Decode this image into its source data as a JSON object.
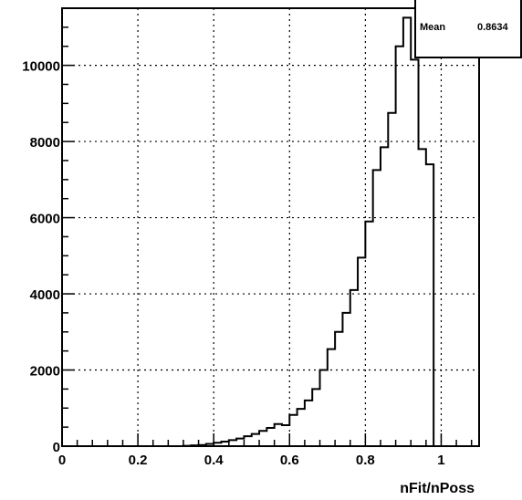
{
  "chart_data": {
    "type": "histogram",
    "title": "",
    "xlabel": "nFit/nPoss",
    "ylabel": "",
    "xlim": [
      0,
      1.1
    ],
    "ylim": [
      0,
      11500
    ],
    "grid": true,
    "x_ticks": [
      0,
      0.2,
      0.4,
      0.6,
      0.8,
      1
    ],
    "x_tick_labels": [
      "0",
      "0.2",
      "0.4",
      "0.6",
      "0.8",
      "1"
    ],
    "y_ticks": [
      0,
      2000,
      4000,
      6000,
      8000,
      10000
    ],
    "y_tick_labels": [
      "0",
      "2000",
      "4000",
      "6000",
      "8000",
      "10000"
    ],
    "bin_edges": [
      0.32,
      0.34,
      0.36,
      0.38,
      0.4,
      0.42,
      0.44,
      0.46,
      0.48,
      0.5,
      0.52,
      0.54,
      0.56,
      0.58,
      0.6,
      0.62,
      0.64,
      0.66,
      0.68,
      0.7,
      0.72,
      0.74,
      0.76,
      0.78,
      0.8,
      0.82,
      0.84,
      0.86,
      0.88,
      0.9,
      0.92,
      0.94,
      0.96,
      0.98,
      1.0,
      1.02
    ],
    "bin_values": [
      10,
      20,
      30,
      60,
      90,
      120,
      160,
      200,
      260,
      320,
      400,
      480,
      580,
      550,
      820,
      980,
      1200,
      1500,
      2000,
      2550,
      3000,
      3500,
      4100,
      4950,
      5900,
      7250,
      7850,
      8750,
      10500,
      11250,
      10150,
      7800,
      7400,
      0,
      0
    ]
  },
  "stats_box": {
    "label": "Mean",
    "value": "0.8634"
  }
}
